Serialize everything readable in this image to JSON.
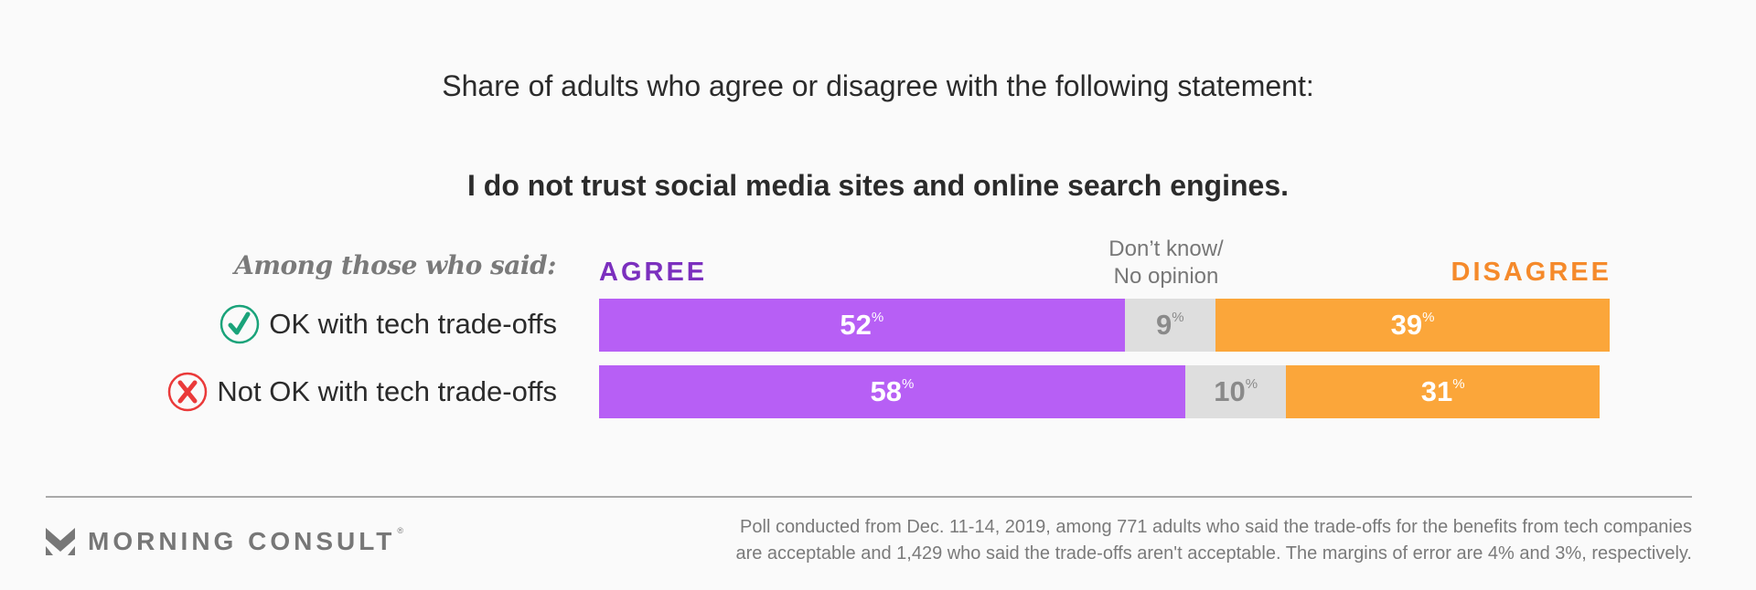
{
  "chart_data": {
    "type": "bar",
    "orientation": "horizontal-stacked-100",
    "subtitle": "Share of adults who agree or disagree with the following statement:",
    "title": "I do not trust social media sites and online search engines.",
    "row_header": "Among those who said:",
    "categories": [
      "OK with tech trade-offs",
      "Not OK with tech trade-offs"
    ],
    "category_icons": [
      "check-circle-icon",
      "x-circle-icon"
    ],
    "series": [
      {
        "name": "AGREE",
        "key": "agree",
        "color": "#b75ff5",
        "label_color": "#ffffff",
        "values": [
          52,
          58
        ]
      },
      {
        "name": "Don’t know/ No opinion",
        "key": "dk",
        "color": "#dedede",
        "label_color": "#8a8a8a",
        "values": [
          9,
          10
        ]
      },
      {
        "name": "DISAGREE",
        "key": "disagree",
        "color": "#fba63a",
        "label_color": "#ffffff",
        "values": [
          39,
          31
        ]
      }
    ],
    "legend": {
      "agree": {
        "text": "AGREE",
        "color": "#7b2fbe"
      },
      "dk_line1": "Don’t know/",
      "dk_line2": "No opinion",
      "disagree": {
        "text": "DISAGREE",
        "color": "#f58a2b"
      }
    },
    "value_suffix": "%",
    "xlim": [
      0,
      100
    ]
  },
  "colors": {
    "check": "#1aa37a",
    "cross": "#ea3a3a"
  },
  "footer": {
    "brand": "MORNING CONSULT",
    "registered": "®",
    "note_line1": "Poll conducted from Dec. 11-14, 2019, among 771 adults who said the trade-offs for the benefits from tech companies",
    "note_line2": "are acceptable and 1,429 who said the trade-offs aren't acceptable. The margins of error are 4% and 3%, respectively."
  }
}
